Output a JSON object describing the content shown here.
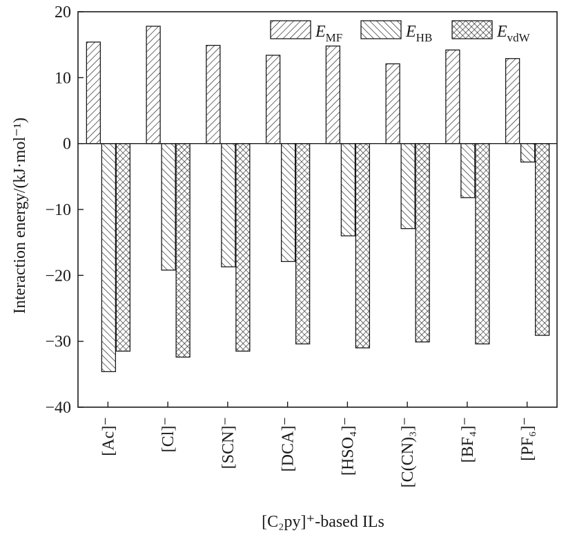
{
  "chart_data": {
    "type": "bar",
    "xlabel": "[C₂py]⁺-based ILs",
    "ylabel": "Interaction energy/(kJ·mol⁻¹)",
    "ylim": [
      -40,
      20
    ],
    "yticks": [
      -40,
      -30,
      -20,
      -10,
      0,
      10,
      20
    ],
    "yticklabels": [
      "−40",
      "−30",
      "−20",
      "−10",
      "0",
      "10",
      "20"
    ],
    "grid": false,
    "legend_position": "top-right",
    "categories": [
      "[Ac]⁻",
      "[Cl]⁻",
      "[SCN]⁻",
      "[DCA]⁻",
      "[HSO₄]⁻",
      "[C(CN)₃]⁻",
      "[BF₄]⁻",
      "[PF₆]⁻"
    ],
    "series": [
      {
        "name": "E_MF",
        "legend_main": "E",
        "legend_sub": "MF",
        "pattern": "forward-diagonal-hatch",
        "values": [
          15.4,
          17.8,
          14.9,
          13.4,
          14.8,
          12.1,
          14.2,
          12.9
        ]
      },
      {
        "name": "E_HB",
        "legend_main": "E",
        "legend_sub": "HB",
        "pattern": "backward-diagonal-hatch",
        "values": [
          -34.6,
          -19.2,
          -18.7,
          -17.9,
          -14.0,
          -12.9,
          -8.2,
          -2.8
        ]
      },
      {
        "name": "E_vdW",
        "legend_main": "E",
        "legend_sub": "vdW",
        "pattern": "cross-hatch",
        "values": [
          -31.5,
          -32.4,
          -31.5,
          -30.4,
          -31.0,
          -30.1,
          -30.4,
          -29.1
        ]
      }
    ],
    "colors": {
      "stroke": "#1a1a1a",
      "background": "#ffffff"
    }
  }
}
